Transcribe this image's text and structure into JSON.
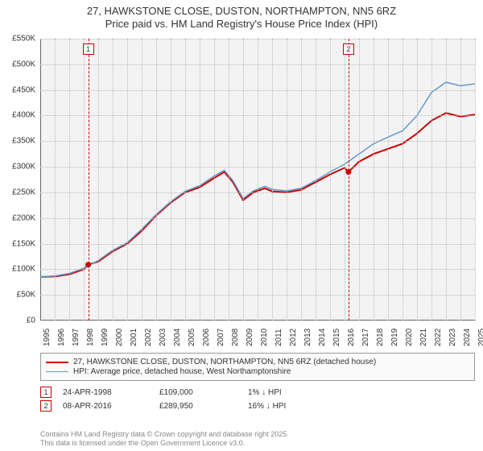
{
  "title": {
    "line1": "27, HAWKSTONE CLOSE, DUSTON, NORTHAMPTON, NN5 6RZ",
    "line2": "Price paid vs. HM Land Registry's House Price Index (HPI)",
    "fontsize": 13,
    "color": "#333333"
  },
  "chart": {
    "type": "line",
    "plot_background": "#f3f3f3",
    "grid_color": "#bbbbbb",
    "axis_color": "#666666",
    "x": {
      "min": 1995,
      "max": 2025,
      "tick_step": 1,
      "labels": [
        "1995",
        "1996",
        "1997",
        "1998",
        "1999",
        "2000",
        "2001",
        "2002",
        "2003",
        "2004",
        "2005",
        "2006",
        "2007",
        "2008",
        "2009",
        "2010",
        "2011",
        "2012",
        "2013",
        "2014",
        "2015",
        "2016",
        "2017",
        "2018",
        "2019",
        "2020",
        "2021",
        "2022",
        "2023",
        "2024",
        "2025"
      ],
      "label_fontsize": 10,
      "label_rotation": -90
    },
    "y": {
      "min": 0,
      "max": 550000,
      "tick_step": 50000,
      "labels": [
        "£0",
        "£50K",
        "£100K",
        "£150K",
        "£200K",
        "£250K",
        "£300K",
        "£350K",
        "£400K",
        "£450K",
        "£500K",
        "£550K"
      ],
      "label_fontsize": 10
    },
    "series": [
      {
        "id": "price-paid",
        "label": "27, HAWKSTONE CLOSE, DUSTON, NORTHAMPTON, NN5 6RZ (detached house)",
        "color": "#cc0000",
        "line_width": 2,
        "points": [
          [
            1995.0,
            85000
          ],
          [
            1996.0,
            86000
          ],
          [
            1997.0,
            90000
          ],
          [
            1998.0,
            100000
          ],
          [
            1998.31,
            109000
          ],
          [
            1999.0,
            115000
          ],
          [
            2000.0,
            135000
          ],
          [
            2001.0,
            150000
          ],
          [
            2002.0,
            175000
          ],
          [
            2003.0,
            205000
          ],
          [
            2004.0,
            230000
          ],
          [
            2005.0,
            250000
          ],
          [
            2006.0,
            260000
          ],
          [
            2007.0,
            278000
          ],
          [
            2007.7,
            290000
          ],
          [
            2008.3,
            270000
          ],
          [
            2009.0,
            235000
          ],
          [
            2009.7,
            250000
          ],
          [
            2010.5,
            258000
          ],
          [
            2011.0,
            252000
          ],
          [
            2012.0,
            250000
          ],
          [
            2013.0,
            255000
          ],
          [
            2014.0,
            270000
          ],
          [
            2015.0,
            285000
          ],
          [
            2016.0,
            298000
          ],
          [
            2016.27,
            289950
          ],
          [
            2017.0,
            310000
          ],
          [
            2018.0,
            325000
          ],
          [
            2019.0,
            335000
          ],
          [
            2020.0,
            345000
          ],
          [
            2021.0,
            365000
          ],
          [
            2022.0,
            390000
          ],
          [
            2023.0,
            405000
          ],
          [
            2024.0,
            398000
          ],
          [
            2025.0,
            402000
          ]
        ]
      },
      {
        "id": "hpi",
        "label": "HPI: Average price, detached house, West Northamptonshire",
        "color": "#6699cc",
        "line_width": 1.5,
        "points": [
          [
            1995.0,
            85000
          ],
          [
            1996.0,
            87000
          ],
          [
            1997.0,
            92000
          ],
          [
            1998.0,
            102000
          ],
          [
            1999.0,
            117000
          ],
          [
            2000.0,
            137000
          ],
          [
            2001.0,
            152000
          ],
          [
            2002.0,
            178000
          ],
          [
            2003.0,
            207000
          ],
          [
            2004.0,
            232000
          ],
          [
            2005.0,
            252000
          ],
          [
            2006.0,
            263000
          ],
          [
            2007.0,
            282000
          ],
          [
            2007.7,
            293000
          ],
          [
            2008.3,
            273000
          ],
          [
            2009.0,
            238000
          ],
          [
            2009.7,
            253000
          ],
          [
            2010.5,
            262000
          ],
          [
            2011.0,
            256000
          ],
          [
            2012.0,
            253000
          ],
          [
            2013.0,
            258000
          ],
          [
            2014.0,
            273000
          ],
          [
            2015.0,
            290000
          ],
          [
            2016.0,
            305000
          ],
          [
            2017.0,
            325000
          ],
          [
            2018.0,
            345000
          ],
          [
            2019.0,
            358000
          ],
          [
            2020.0,
            370000
          ],
          [
            2021.0,
            400000
          ],
          [
            2022.0,
            445000
          ],
          [
            2023.0,
            465000
          ],
          [
            2024.0,
            458000
          ],
          [
            2025.0,
            462000
          ]
        ]
      }
    ],
    "sale_markers": [
      {
        "n": "1",
        "x": 1998.31,
        "y": 109000,
        "color": "#cc0000"
      },
      {
        "n": "2",
        "x": 2016.27,
        "y": 289950,
        "color": "#cc0000"
      }
    ],
    "sale_points_color": "#cc0000",
    "marker_box_border": "#cc0000",
    "marker_box_bg": "#fafafa"
  },
  "legend": {
    "border_color": "#999999",
    "background": "#fafafa",
    "fontsize": 10,
    "items": [
      {
        "color": "#cc0000",
        "width": 2,
        "label": "27, HAWKSTONE CLOSE, DUSTON, NORTHAMPTON, NN5 6RZ (detached house)"
      },
      {
        "color": "#6699cc",
        "width": 1.5,
        "label": "HPI: Average price, detached house, West Northamptonshire"
      }
    ]
  },
  "footnotes": {
    "fontsize": 10,
    "box_border": "#cc0000",
    "rows": [
      {
        "n": "1",
        "date": "24-APR-1998",
        "price": "£109,000",
        "delta": "1% ↓ HPI"
      },
      {
        "n": "2",
        "date": "08-APR-2016",
        "price": "£289,950",
        "delta": "16% ↓ HPI"
      }
    ]
  },
  "attribution": {
    "line1": "Contains HM Land Registry data © Crown copyright and database right 2025.",
    "line2": "This data is licensed under the Open Government Licence v3.0.",
    "color": "#888888",
    "fontsize": 9
  }
}
